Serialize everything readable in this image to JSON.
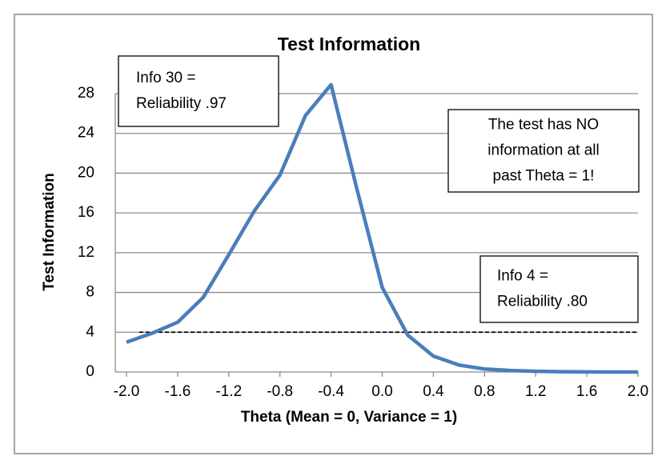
{
  "chart_data": {
    "type": "line",
    "title": "Test Information",
    "x_label": "Theta (Mean = 0, Variance = 1)",
    "y_label": "Test Information",
    "x": [
      -2.0,
      -1.8,
      -1.6,
      -1.4,
      -1.2,
      -1.0,
      -0.8,
      -0.6,
      -0.4,
      -0.2,
      0.0,
      0.2,
      0.4,
      0.6,
      0.8,
      1.0,
      1.2,
      1.4,
      1.6,
      1.8,
      2.0
    ],
    "series": [
      {
        "color": "#4a7ebb",
        "values": [
          3.0,
          3.9,
          5.0,
          7.5,
          11.8,
          16.2,
          19.8,
          25.8,
          28.9,
          18.5,
          8.5,
          3.7,
          1.6,
          0.7,
          0.3,
          0.15,
          0.07,
          0.03,
          0.01,
          0.0,
          0.0
        ]
      }
    ],
    "threshold": {
      "value": 4,
      "x": [
        -1.9,
        2.0
      ],
      "color": "#000000"
    },
    "xlim": [
      -2.0,
      2.0
    ],
    "xticks": [
      {
        "value": -2.0,
        "label": "-2.0"
      },
      {
        "value": -1.6,
        "label": "-1.6"
      },
      {
        "value": -1.2,
        "label": "-1.2"
      },
      {
        "value": -0.8,
        "label": "-0.8"
      },
      {
        "value": -0.4,
        "label": "-0.4"
      },
      {
        "value": 0.0,
        "label": "0.0"
      },
      {
        "value": 0.4,
        "label": "0.4"
      },
      {
        "value": 0.8,
        "label": "0.8"
      },
      {
        "value": 1.2,
        "label": "1.2"
      },
      {
        "value": 1.6,
        "label": "1.6"
      },
      {
        "value": 2.0,
        "label": "2.0"
      }
    ],
    "ylim": [
      0,
      28
    ],
    "yticks": [
      0,
      4,
      8,
      12,
      16,
      20,
      24,
      28
    ],
    "grid": true,
    "annotations": [
      {
        "lines": [
          "Info 30 =",
          "Reliability .97"
        ]
      },
      {
        "lines": [
          "The test has NO",
          "information at all",
          "past Theta = 1!"
        ]
      },
      {
        "lines": [
          "Info 4 =",
          "Reliability .80"
        ]
      }
    ]
  }
}
